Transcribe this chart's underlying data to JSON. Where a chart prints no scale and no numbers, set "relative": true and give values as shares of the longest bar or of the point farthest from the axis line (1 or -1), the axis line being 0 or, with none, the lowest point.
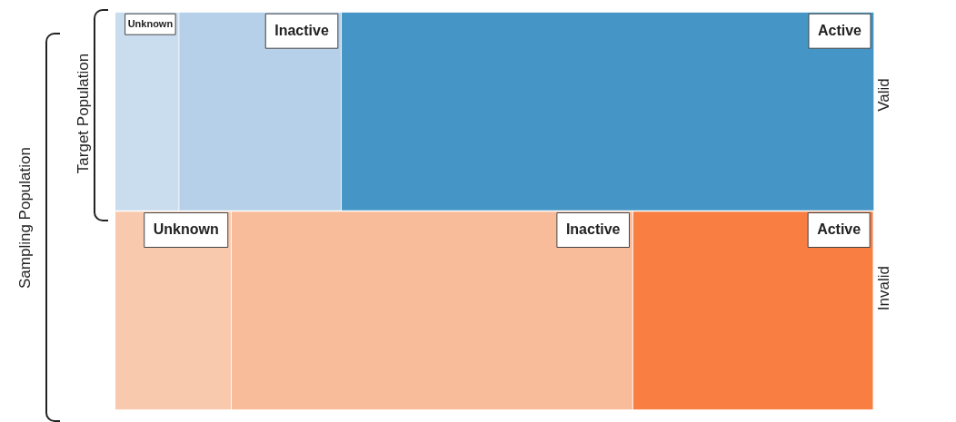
{
  "chart_data": {
    "type": "bar",
    "orientation": "horizontal",
    "stacked": true,
    "relative": true,
    "categories": [
      "Valid",
      "Invalid"
    ],
    "series": [
      {
        "name": "Unknown",
        "colors": [
          "#c9ddef",
          "#f9c9ad"
        ],
        "values": [
          0.084,
          0.153
        ]
      },
      {
        "name": "Inactive",
        "colors": [
          "#b5d0e8",
          "#f8bc9a"
        ],
        "values": [
          0.214,
          0.529
        ]
      },
      {
        "name": "Active",
        "colors": [
          "#4596c6",
          "#f87e42"
        ],
        "values": [
          0.702,
          0.317
        ]
      }
    ],
    "annotations": [
      "Target Population",
      "Sampling Population"
    ],
    "legend": false
  }
}
